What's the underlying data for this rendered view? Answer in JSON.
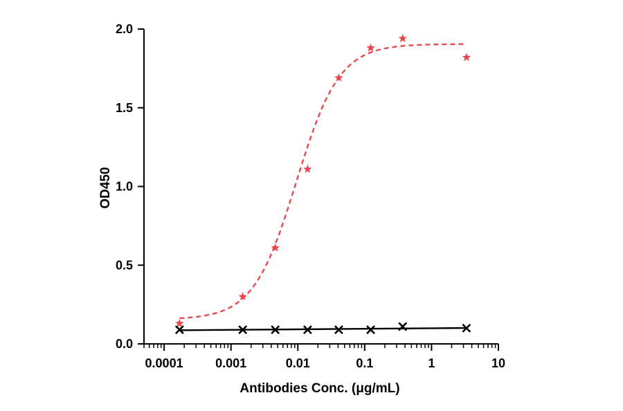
{
  "chart_data": {
    "type": "scatter",
    "title": "",
    "xlabel": "Antibodies Conc. (μg/mL)",
    "ylabel": "OD450",
    "x_scale": "log",
    "xlim": [
      5e-05,
      10
    ],
    "ylim": [
      0,
      2.0
    ],
    "x_ticks": [
      0.0001,
      0.001,
      0.01,
      0.1,
      1,
      10
    ],
    "x_tick_labels": [
      "0.0001",
      "0.001",
      "0.01",
      "0.1",
      "1",
      "10"
    ],
    "y_ticks": [
      0,
      0.5,
      1.0,
      1.5,
      2.0
    ],
    "y_tick_labels": [
      "0.0",
      "0.5",
      "1.0",
      "1.5",
      "2.0"
    ],
    "grid": false,
    "legend": "none",
    "series": [
      {
        "marker": "star",
        "color": "#e8474c",
        "line_style": "dashed",
        "fit": "4PL",
        "x": [
          0.00017,
          0.0015,
          0.0046,
          0.014,
          0.041,
          0.123,
          0.37,
          3.33
        ],
        "y": [
          0.13,
          0.3,
          0.61,
          1.11,
          1.69,
          1.88,
          1.94,
          1.82
        ]
      },
      {
        "marker": "x",
        "color": "#000000",
        "line_style": "solid",
        "fit": "linear",
        "x": [
          0.00017,
          0.0015,
          0.0046,
          0.014,
          0.041,
          0.123,
          0.37,
          3.33
        ],
        "y": [
          0.09,
          0.09,
          0.09,
          0.09,
          0.09,
          0.09,
          0.11,
          0.1
        ]
      }
    ]
  }
}
